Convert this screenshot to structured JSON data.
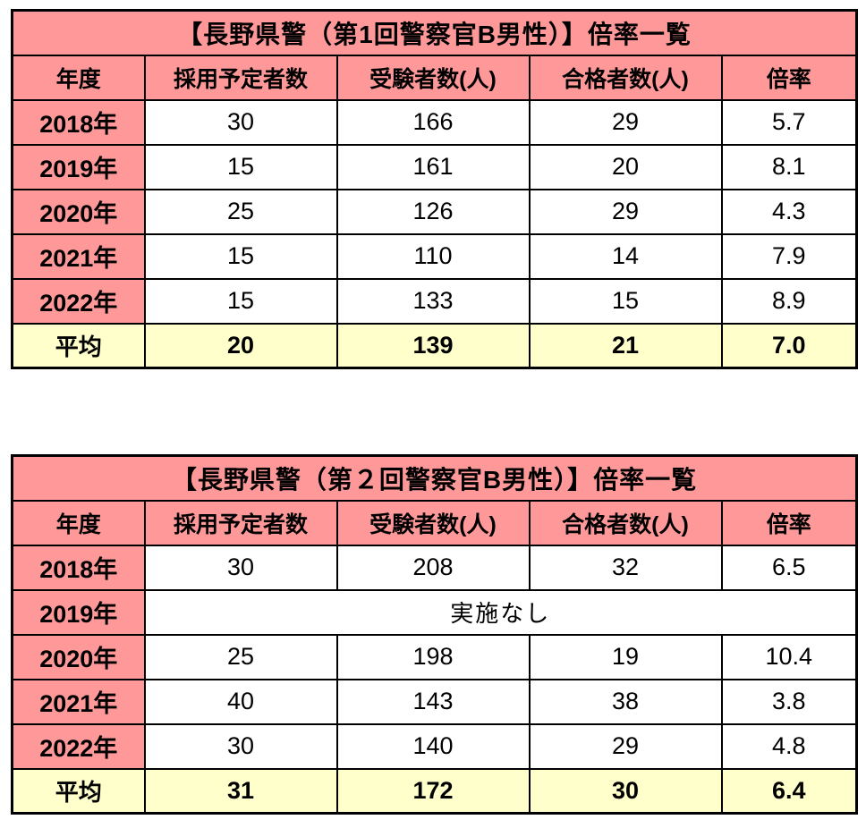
{
  "colors": {
    "header_pink": "#FF9999",
    "average_yellow": "#FFFFCC",
    "border_black": "#000000",
    "cell_white": "#FFFFFF",
    "text_black": "#000000"
  },
  "tables": [
    {
      "title": "【長野県警（第1回警察官B男性）】倍率一覧",
      "headers": [
        "年度",
        "採用予定者数",
        "受験者数(人)",
        "合格者数(人)",
        "倍率"
      ],
      "rows": [
        {
          "year": "2018年",
          "cells": [
            "30",
            "166",
            "29",
            "5.7"
          ]
        },
        {
          "year": "2019年",
          "cells": [
            "15",
            "161",
            "20",
            "8.1"
          ]
        },
        {
          "year": "2020年",
          "cells": [
            "25",
            "126",
            "29",
            "4.3"
          ]
        },
        {
          "year": "2021年",
          "cells": [
            "15",
            "110",
            "14",
            "7.9"
          ]
        },
        {
          "year": "2022年",
          "cells": [
            "15",
            "133",
            "15",
            "8.9"
          ]
        }
      ],
      "average": {
        "label": "平均",
        "cells": [
          "20",
          "139",
          "21",
          "7.0"
        ]
      }
    },
    {
      "title": "【長野県警（第２回警察官B男性）】倍率一覧",
      "headers": [
        "年度",
        "採用予定者数",
        "受験者数(人)",
        "合格者数(人)",
        "倍率"
      ],
      "rows": [
        {
          "year": "2018年",
          "cells": [
            "30",
            "208",
            "32",
            "6.5"
          ]
        },
        {
          "year": "2019年",
          "note": "実施なし"
        },
        {
          "year": "2020年",
          "cells": [
            "25",
            "198",
            "19",
            "10.4"
          ]
        },
        {
          "year": "2021年",
          "cells": [
            "40",
            "143",
            "38",
            "3.8"
          ]
        },
        {
          "year": "2022年",
          "cells": [
            "30",
            "140",
            "29",
            "4.8"
          ]
        }
      ],
      "average": {
        "label": "平均",
        "cells": [
          "31",
          "172",
          "30",
          "6.4"
        ]
      }
    }
  ],
  "chart_data": [
    {
      "type": "table",
      "title": "【長野県警（第1回警察官B男性）】倍率一覧",
      "columns": [
        "年度",
        "採用予定者数",
        "受験者数(人)",
        "合格者数(人)",
        "倍率"
      ],
      "rows": [
        [
          "2018年",
          30,
          166,
          29,
          5.7
        ],
        [
          "2019年",
          15,
          161,
          20,
          8.1
        ],
        [
          "2020年",
          25,
          126,
          29,
          4.3
        ],
        [
          "2021年",
          15,
          110,
          14,
          7.9
        ],
        [
          "2022年",
          15,
          133,
          15,
          8.9
        ],
        [
          "平均",
          20,
          139,
          21,
          7.0
        ]
      ]
    },
    {
      "type": "table",
      "title": "【長野県警（第２回警察官B男性）】倍率一覧",
      "columns": [
        "年度",
        "採用予定者数",
        "受験者数(人)",
        "合格者数(人)",
        "倍率"
      ],
      "rows": [
        [
          "2018年",
          30,
          208,
          32,
          6.5
        ],
        [
          "2019年",
          "実施なし",
          "実施なし",
          "実施なし",
          "実施なし"
        ],
        [
          "2020年",
          25,
          198,
          19,
          10.4
        ],
        [
          "2021年",
          40,
          143,
          38,
          3.8
        ],
        [
          "2022年",
          30,
          140,
          29,
          4.8
        ],
        [
          "平均",
          31,
          172,
          30,
          6.4
        ]
      ]
    }
  ]
}
